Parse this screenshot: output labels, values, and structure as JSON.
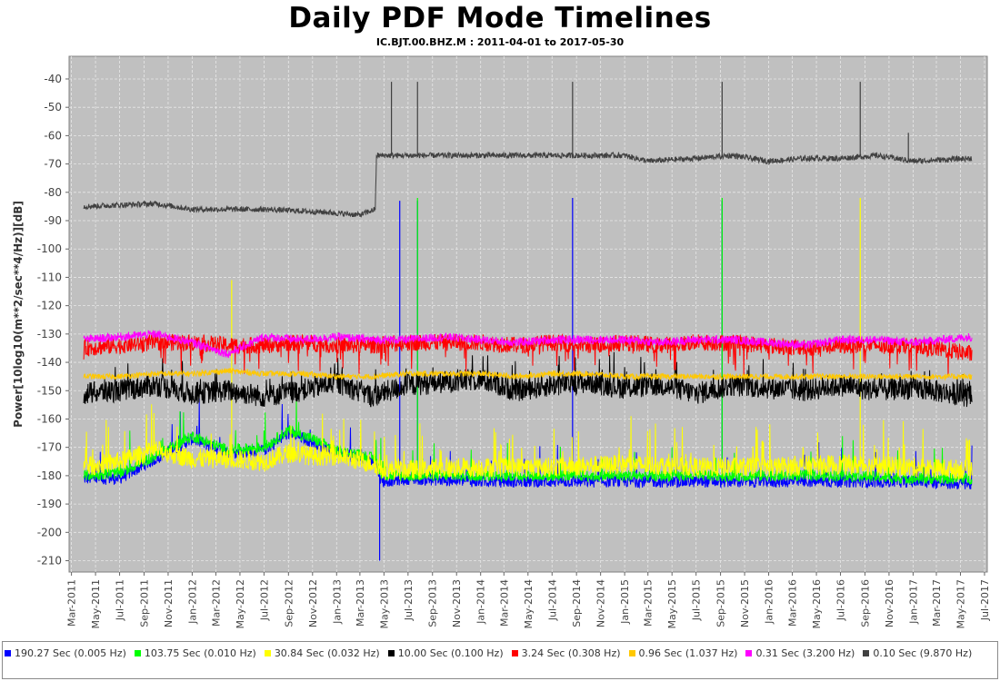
{
  "chart_data": {
    "type": "line",
    "title": "Daily PDF Mode Timelines",
    "subtitle": "IC.BJT.00.BHZ.M : 2011-04-01 to 2017-05-30",
    "ylabel": "Power[10log10(m**2/sec**4/Hz)][dB]",
    "xlabel": "",
    "ylim": [
      -214,
      -32
    ],
    "xlim": [
      "2011-02-23",
      "2017-07-08"
    ],
    "grid": true,
    "legend_position": "bottom",
    "y_ticks": [
      "-40",
      "-50",
      "-60",
      "-70",
      "-80",
      "-90",
      "-100",
      "-110",
      "-120",
      "-130",
      "-140",
      "-150",
      "-160",
      "-170",
      "-180",
      "-190",
      "-200",
      "-210"
    ],
    "x_ticks": [
      "Mar-2011",
      "May-2011",
      "Jul-2011",
      "Sep-2011",
      "Nov-2011",
      "Jan-2012",
      "Mar-2012",
      "May-2012",
      "Jul-2012",
      "Sep-2012",
      "Nov-2012",
      "Jan-2013",
      "Mar-2013",
      "May-2013",
      "Jul-2013",
      "Sep-2013",
      "Nov-2013",
      "Jan-2014",
      "Mar-2014",
      "May-2014",
      "Jul-2014",
      "Sep-2014",
      "Nov-2014",
      "Jan-2015",
      "Mar-2015",
      "May-2015",
      "Jul-2015",
      "Sep-2015",
      "Nov-2015",
      "Jan-2016",
      "Mar-2016",
      "May-2016",
      "Jul-2016",
      "Sep-2016",
      "Nov-2016",
      "Jan-2017",
      "Mar-2017",
      "May-2017",
      "Jul-2017"
    ],
    "series": [
      {
        "name": "190.27 Sec (0.005 Hz)",
        "color": "#0000ff",
        "x": [
          "2011-04-01",
          "2011-07-01",
          "2011-10-01",
          "2012-01-01",
          "2012-04-01",
          "2012-07-01",
          "2012-09-01",
          "2012-11-01",
          "2013-01-01",
          "2013-04-10",
          "2013-04-25",
          "2013-07-01",
          "2014-01-01",
          "2014-07-01",
          "2015-01-01",
          "2015-07-01",
          "2016-01-01",
          "2016-07-01",
          "2017-01-01",
          "2017-05-30"
        ],
        "y": [
          -181,
          -181,
          -174,
          -167,
          -172,
          -171,
          -165,
          -168,
          -172,
          -175,
          -182,
          -181,
          -182,
          -182,
          -182,
          -182,
          -182,
          -182,
          -182,
          -183
        ],
        "spikes": [
          {
            "x": "2013-04-20",
            "y": -210
          },
          {
            "x": "2013-06-10",
            "y": -83
          },
          {
            "x": "2013-07-25",
            "y": -83
          },
          {
            "x": "2014-08-22",
            "y": -82
          },
          {
            "x": "2015-09-05",
            "y": -83
          }
        ]
      },
      {
        "name": "103.75 Sec (0.010 Hz)",
        "color": "#00ff00",
        "x": [
          "2011-04-01",
          "2011-07-01",
          "2011-10-01",
          "2012-01-01",
          "2012-04-01",
          "2012-07-01",
          "2012-09-01",
          "2012-11-01",
          "2013-01-01",
          "2013-04-10",
          "2013-04-25",
          "2013-07-01",
          "2014-01-01",
          "2014-07-01",
          "2015-01-01",
          "2015-07-01",
          "2016-01-01",
          "2016-07-01",
          "2017-01-01",
          "2017-05-30"
        ],
        "y": [
          -180,
          -179,
          -173,
          -166,
          -171,
          -170,
          -164,
          -167,
          -171,
          -174,
          -180,
          -180,
          -180,
          -180,
          -180,
          -180,
          -180,
          -180,
          -181,
          -181
        ],
        "spikes": [
          {
            "x": "2013-07-25",
            "y": -82
          },
          {
            "x": "2015-09-05",
            "y": -82
          }
        ]
      },
      {
        "name": "30.84 Sec (0.032 Hz)",
        "color": "#ffff00",
        "x": [
          "2011-04-01",
          "2011-07-01",
          "2011-10-01",
          "2012-01-01",
          "2012-04-01",
          "2012-07-01",
          "2012-09-01",
          "2012-11-01",
          "2013-01-01",
          "2013-04-10",
          "2013-04-25",
          "2013-07-01",
          "2014-01-01",
          "2014-07-01",
          "2015-01-01",
          "2015-07-01",
          "2016-01-01",
          "2016-07-01",
          "2017-01-01",
          "2017-05-30"
        ],
        "y": [
          -177,
          -175,
          -171,
          -174,
          -174,
          -175,
          -172,
          -173,
          -173,
          -176,
          -178,
          -178,
          -177,
          -177,
          -176,
          -177,
          -177,
          -176,
          -177,
          -178
        ],
        "spikes": [
          {
            "x": "2012-04-10",
            "y": -111
          },
          {
            "x": "2016-08-20",
            "y": -82
          }
        ]
      },
      {
        "name": "10.00 Sec (0.100 Hz)",
        "color": "#000000",
        "x": [
          "2011-04-01",
          "2011-07-01",
          "2011-10-01",
          "2012-01-01",
          "2012-04-01",
          "2012-07-01",
          "2012-10-01",
          "2013-01-01",
          "2013-04-01",
          "2013-07-01",
          "2013-10-01",
          "2014-01-01",
          "2014-04-01",
          "2014-07-01",
          "2014-10-01",
          "2015-01-01",
          "2015-04-01",
          "2015-07-01",
          "2015-10-01",
          "2016-01-01",
          "2016-04-01",
          "2016-07-01",
          "2016-10-01",
          "2017-01-01",
          "2017-05-30"
        ],
        "y": [
          -151,
          -150,
          -148,
          -151,
          -150,
          -152,
          -150,
          -147,
          -152,
          -148,
          -147,
          -146,
          -150,
          -148,
          -147,
          -149,
          -148,
          -151,
          -148,
          -149,
          -150,
          -148,
          -150,
          -149,
          -152
        ],
        "spikes": []
      },
      {
        "name": "3.24 Sec (0.308 Hz)",
        "color": "#ff0000",
        "x": [
          "2011-04-01",
          "2011-07-01",
          "2011-10-01",
          "2012-01-01",
          "2012-04-01",
          "2012-07-01",
          "2012-10-01",
          "2013-01-01",
          "2013-04-01",
          "2013-07-01",
          "2013-10-01",
          "2014-01-01",
          "2014-04-01",
          "2014-07-01",
          "2014-10-01",
          "2015-01-01",
          "2015-04-01",
          "2015-07-01",
          "2015-10-01",
          "2016-01-01",
          "2016-04-01",
          "2016-07-01",
          "2016-10-01",
          "2017-01-01",
          "2017-05-30"
        ],
        "y": [
          -135,
          -134,
          -133,
          -133,
          -134,
          -134,
          -133,
          -134,
          -134,
          -133,
          -133,
          -133,
          -134,
          -133,
          -134,
          -133,
          -134,
          -133,
          -133,
          -134,
          -135,
          -134,
          -134,
          -134,
          -137
        ],
        "spikes": []
      },
      {
        "name": "0.96 Sec (1.037 Hz)",
        "color": "#ffc800",
        "x": [
          "2011-04-01",
          "2011-07-01",
          "2011-10-01",
          "2012-01-01",
          "2012-04-01",
          "2012-07-01",
          "2012-10-01",
          "2013-01-01",
          "2013-04-01",
          "2013-07-01",
          "2013-10-01",
          "2014-01-01",
          "2014-04-01",
          "2014-07-01",
          "2014-10-01",
          "2015-01-01",
          "2015-04-01",
          "2015-07-01",
          "2015-10-01",
          "2016-01-01",
          "2016-04-01",
          "2016-07-01",
          "2016-10-01",
          "2017-01-01",
          "2017-05-30"
        ],
        "y": [
          -145,
          -145,
          -144,
          -144,
          -143,
          -144,
          -144,
          -145,
          -145,
          -144,
          -144,
          -144,
          -145,
          -144,
          -144,
          -145,
          -145,
          -145,
          -145,
          -145,
          -145,
          -145,
          -145,
          -145,
          -145
        ],
        "spikes": []
      },
      {
        "name": "0.31 Sec (3.200 Hz)",
        "color": "#ff00ff",
        "x": [
          "2011-04-01",
          "2011-07-01",
          "2011-10-01",
          "2012-01-01",
          "2012-04-01",
          "2012-07-01",
          "2012-10-01",
          "2013-01-01",
          "2013-04-01",
          "2013-07-01",
          "2013-10-01",
          "2014-01-01",
          "2014-04-01",
          "2014-07-01",
          "2014-10-01",
          "2015-01-01",
          "2015-04-01",
          "2015-07-01",
          "2015-10-01",
          "2016-01-01",
          "2016-04-01",
          "2016-07-01",
          "2016-10-01",
          "2017-01-01",
          "2017-05-30"
        ],
        "y": [
          -132,
          -131,
          -130,
          -133,
          -137,
          -131,
          -132,
          -131,
          -132,
          -132,
          -131,
          -132,
          -133,
          -132,
          -132,
          -132,
          -133,
          -132,
          -132,
          -133,
          -134,
          -132,
          -132,
          -133,
          -131
        ],
        "spikes": []
      },
      {
        "name": "0.10 Sec (9.870 Hz)",
        "color": "#404040",
        "x": [
          "2011-04-01",
          "2011-10-01",
          "2012-01-01",
          "2012-07-01",
          "2012-12-01",
          "2013-03-01",
          "2013-04-09",
          "2013-04-12",
          "2013-07-01",
          "2014-01-01",
          "2014-07-01",
          "2015-01-01",
          "2015-03-01",
          "2015-07-01",
          "2015-10-01",
          "2016-01-01",
          "2016-04-01",
          "2016-07-01",
          "2016-10-01",
          "2017-01-01",
          "2017-05-30"
        ],
        "y": [
          -85,
          -84,
          -86,
          -86,
          -87,
          -88,
          -86,
          -67,
          -67,
          -67,
          -67,
          -67,
          -69,
          -68,
          -67,
          -69,
          -68,
          -68,
          -67,
          -69,
          -68
        ],
        "spikes": [
          {
            "x": "2013-05-20",
            "y": -41
          },
          {
            "x": "2013-07-25",
            "y": -41
          },
          {
            "x": "2014-08-22",
            "y": -41
          },
          {
            "x": "2015-09-05",
            "y": -41
          },
          {
            "x": "2016-08-20",
            "y": -41
          },
          {
            "x": "2016-12-20",
            "y": -59
          }
        ]
      }
    ]
  }
}
